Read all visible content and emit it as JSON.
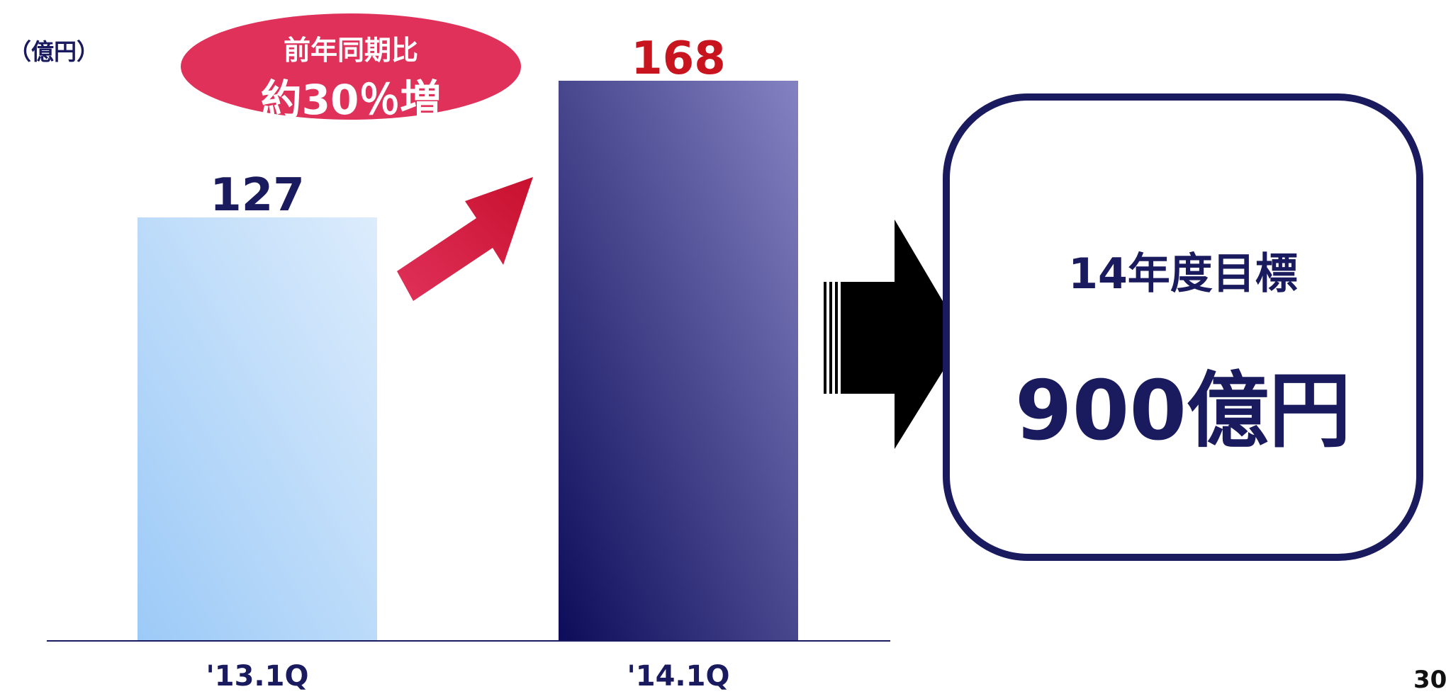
{
  "unit_label": "（億円）",
  "badge": {
    "line1": "前年同期比",
    "line2": "約30％増",
    "color": "#e0315a"
  },
  "chart_data": {
    "type": "bar",
    "categories": [
      "'13.1Q",
      "'14.1Q"
    ],
    "values": [
      127,
      168
    ],
    "data_label_colors": [
      "#1a1a5e",
      "#c8141e"
    ],
    "bar_colors": [
      [
        "#9ccaf7",
        "#dcecfc"
      ],
      [
        "#0c0c5a",
        "#8482c2"
      ]
    ],
    "ylim": [
      0,
      168
    ],
    "grid": false,
    "legend": "none"
  },
  "target": {
    "title": "14年度目標",
    "value": "900億円",
    "color": "#1a1a5e"
  },
  "page_number": "30"
}
